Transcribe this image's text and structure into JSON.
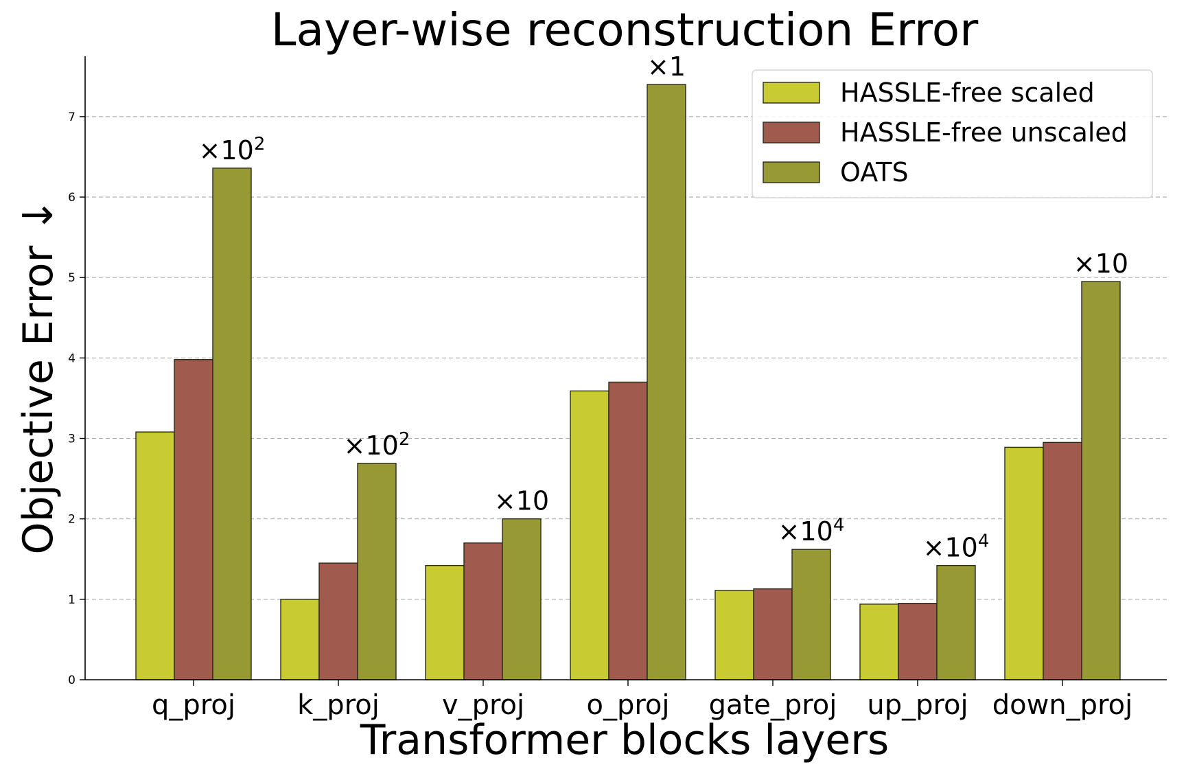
{
  "chart_data": {
    "type": "bar",
    "title": "Layer-wise reconstruction Error",
    "xlabel": "Transformer blocks layers",
    "ylabel": "Objective Error ↓",
    "categories": [
      "q_proj",
      "k_proj",
      "v_proj",
      "o_proj",
      "gate_proj",
      "up_proj",
      "down_proj"
    ],
    "series": [
      {
        "name": "HASSLE-free scaled",
        "color": "#c8cb32",
        "values": [
          3.08,
          1.0,
          1.42,
          3.59,
          1.11,
          0.94,
          2.89
        ]
      },
      {
        "name": "HASSLE-free unscaled",
        "color": "#a05a4e",
        "values": [
          3.98,
          1.45,
          1.7,
          3.7,
          1.13,
          0.95,
          2.95
        ]
      },
      {
        "name": "OATS",
        "color": "#979a34",
        "values": [
          6.36,
          2.69,
          2.0,
          7.4,
          1.62,
          1.42,
          4.95
        ]
      }
    ],
    "annotations": [
      {
        "category": "q_proj",
        "text": "×10",
        "exponent": "2"
      },
      {
        "category": "k_proj",
        "text": "×10",
        "exponent": "2"
      },
      {
        "category": "v_proj",
        "text": "×10",
        "exponent": ""
      },
      {
        "category": "o_proj",
        "text": "×1",
        "exponent": ""
      },
      {
        "category": "gate_proj",
        "text": "×10",
        "exponent": "4"
      },
      {
        "category": "up_proj",
        "text": "×10",
        "exponent": "4"
      },
      {
        "category": "down_proj",
        "text": "×10",
        "exponent": ""
      }
    ],
    "yticks": [
      0,
      1,
      2,
      3,
      4,
      5,
      6,
      7
    ],
    "ylim": [
      0,
      7.75
    ],
    "grid": "y-dashed",
    "legend_position": "top-right"
  }
}
